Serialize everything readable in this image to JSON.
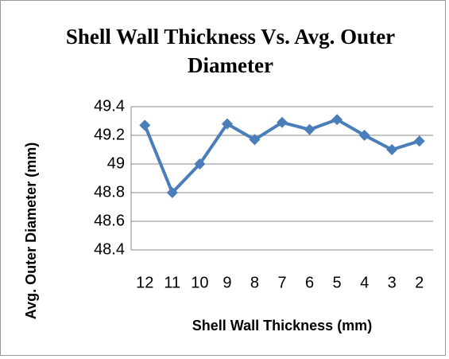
{
  "chart_data": {
    "type": "line",
    "title": "Shell Wall Thickness Vs. Avg. Outer Diameter",
    "x_label": "Shell Wall Thickness (mm)",
    "y_label": "Avg. Outer Diameter (mm)",
    "categories": [
      "12",
      "11",
      "10",
      "9",
      "8",
      "7",
      "6",
      "5",
      "4",
      "3",
      "2"
    ],
    "series": [
      {
        "name": "Avg. Outer Diameter",
        "color": "#4a7ebb",
        "values": [
          49.27,
          48.8,
          49.0,
          49.28,
          49.17,
          49.29,
          49.24,
          49.31,
          49.2,
          49.1,
          49.16
        ]
      }
    ],
    "ylim": [
      48.4,
      49.4
    ],
    "yticks": [
      48.4,
      48.6,
      48.8,
      49,
      49.2,
      49.4
    ],
    "grid": true,
    "legend": false
  }
}
